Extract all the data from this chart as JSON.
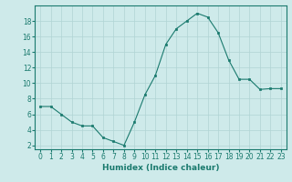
{
  "x": [
    0,
    1,
    2,
    3,
    4,
    5,
    6,
    7,
    8,
    9,
    10,
    11,
    12,
    13,
    14,
    15,
    16,
    17,
    18,
    19,
    20,
    21,
    22,
    23
  ],
  "y": [
    7,
    7,
    6,
    5,
    4.5,
    4.5,
    3,
    2.5,
    2,
    5,
    8.5,
    11,
    15,
    17,
    18,
    19,
    18.5,
    16.5,
    13,
    10.5,
    10.5,
    9.2,
    9.3,
    9.3
  ],
  "xlabel": "Humidex (Indice chaleur)",
  "ylim": [
    1.5,
    20
  ],
  "xlim": [
    -0.5,
    23.5
  ],
  "yticks": [
    2,
    4,
    6,
    8,
    10,
    12,
    14,
    16,
    18
  ],
  "xticks": [
    0,
    1,
    2,
    3,
    4,
    5,
    6,
    7,
    8,
    9,
    10,
    11,
    12,
    13,
    14,
    15,
    16,
    17,
    18,
    19,
    20,
    21,
    22,
    23
  ],
  "line_color": "#1a7a6e",
  "marker": "s",
  "marker_size": 2.0,
  "bg_color": "#ceeaea",
  "grid_color": "#b0d4d4",
  "label_fontsize": 6.5,
  "tick_fontsize": 5.5
}
